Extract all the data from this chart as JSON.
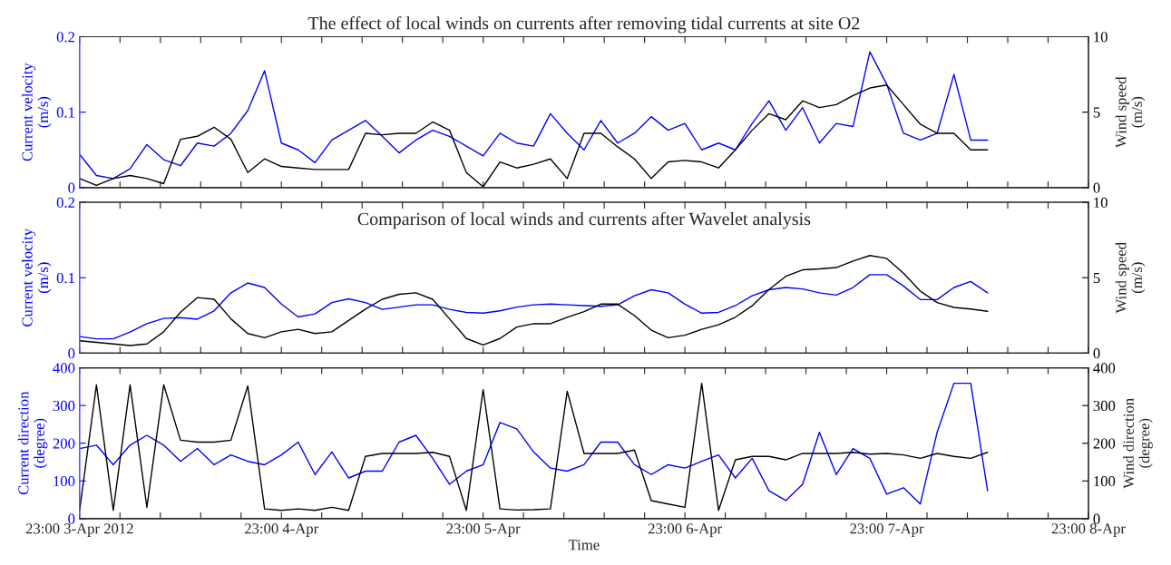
{
  "chart_data": [
    {
      "type": "line",
      "title": "The effect of local winds on currents after removing tidal currents at site O2",
      "ylabel": "Current velocity\n(m/s)",
      "y2label": "Wind speed\n(m/s)",
      "x": [
        "2012-04-03T23:00",
        "2012-04-04T01:00",
        "2012-04-04T03:00",
        "2012-04-04T05:00",
        "2012-04-04T07:00",
        "2012-04-04T09:00",
        "2012-04-04T11:00",
        "2012-04-04T13:00",
        "2012-04-04T15:00",
        "2012-04-04T17:00",
        "2012-04-04T19:00",
        "2012-04-04T21:00",
        "2012-04-04T23:00",
        "2012-04-05T01:00",
        "2012-04-05T03:00",
        "2012-04-05T05:00",
        "2012-04-05T07:00",
        "2012-04-05T09:00",
        "2012-04-05T11:00",
        "2012-04-05T13:00",
        "2012-04-05T15:00",
        "2012-04-05T17:00",
        "2012-04-05T19:00",
        "2012-04-05T21:00",
        "2012-04-05T23:00",
        "2012-04-06T01:00",
        "2012-04-06T03:00",
        "2012-04-06T05:00",
        "2012-04-06T07:00",
        "2012-04-06T09:00",
        "2012-04-06T11:00",
        "2012-04-06T13:00",
        "2012-04-06T15:00",
        "2012-04-06T17:00",
        "2012-04-06T19:00",
        "2012-04-06T21:00",
        "2012-04-06T23:00",
        "2012-04-07T01:00",
        "2012-04-07T03:00",
        "2012-04-07T05:00",
        "2012-04-07T07:00",
        "2012-04-07T09:00",
        "2012-04-07T11:00",
        "2012-04-07T13:00",
        "2012-04-07T15:00",
        "2012-04-07T17:00",
        "2012-04-07T19:00",
        "2012-04-07T21:00",
        "2012-04-07T23:00",
        "2012-04-08T01:00",
        "2012-04-08T03:00",
        "2012-04-08T05:00",
        "2012-04-08T07:00",
        "2012-04-08T09:00",
        "2012-04-08T11:00"
      ],
      "series": [
        {
          "color": "#0000ff",
          "values": [
            0.044,
            0.016,
            0.012,
            0.025,
            0.057,
            0.037,
            0.029,
            0.059,
            0.055,
            0.072,
            0.102,
            0.155,
            0.059,
            0.05,
            0.033,
            0.063,
            0.076,
            0.089,
            0.068,
            0.046,
            0.063,
            0.076,
            0.068,
            0.055,
            0.042,
            0.072,
            0.059,
            0.055,
            0.098,
            0.072,
            0.05,
            0.089,
            0.059,
            0.072,
            0.094,
            0.076,
            0.085,
            0.05,
            0.059,
            0.05,
            0.085,
            0.115,
            0.076,
            0.106,
            0.059,
            0.085,
            0.081,
            0.18,
            0.137,
            0.072,
            0.063,
            0.072,
            0.15,
            0.063,
            0.063
          ]
        },
        {
          "color": "#000000",
          "axis": "y2",
          "values": [
            0.6,
            0.15,
            0.6,
            0.8,
            0.6,
            0.26,
            3.2,
            3.4,
            4.0,
            3.2,
            1.0,
            1.9,
            1.4,
            1.3,
            1.2,
            1.2,
            1.2,
            3.6,
            3.5,
            3.6,
            3.6,
            4.35,
            3.8,
            1.0,
            0.05,
            1.7,
            1.3,
            1.55,
            1.9,
            0.6,
            3.6,
            3.6,
            2.7,
            1.9,
            0.6,
            1.7,
            1.8,
            1.7,
            1.3,
            2.5,
            3.8,
            4.9,
            4.5,
            5.75,
            5.3,
            5.5,
            6.1,
            6.6,
            6.8,
            5.5,
            4.2,
            3.6,
            3.6,
            2.5,
            2.5
          ]
        }
      ],
      "xlim": [
        "2012-04-03T23:00",
        "2012-04-08T23:00"
      ],
      "xticks": [
        {
          "value": "2012-04-03T23:00",
          "label": null
        },
        {
          "value": "2012-04-04T03:48",
          "label": null
        },
        {
          "value": "2012-04-04T08:36",
          "label": null
        },
        {
          "value": "2012-04-04T13:24",
          "label": null
        },
        {
          "value": "2012-04-04T18:12",
          "label": null
        },
        {
          "value": "2012-04-04T23:00",
          "label": null
        },
        {
          "value": "2012-04-05T03:48",
          "label": null
        },
        {
          "value": "2012-04-05T08:36",
          "label": null
        },
        {
          "value": "2012-04-05T13:24",
          "label": null
        },
        {
          "value": "2012-04-05T18:12",
          "label": null
        },
        {
          "value": "2012-04-05T23:00",
          "label": null
        },
        {
          "value": "2012-04-06T03:48",
          "label": null
        },
        {
          "value": "2012-04-06T08:36",
          "label": null
        },
        {
          "value": "2012-04-06T13:24",
          "label": null
        },
        {
          "value": "2012-04-06T18:12",
          "label": null
        },
        {
          "value": "2012-04-06T23:00",
          "label": null
        },
        {
          "value": "2012-04-07T03:48",
          "label": null
        },
        {
          "value": "2012-04-07T08:36",
          "label": null
        },
        {
          "value": "2012-04-07T13:24",
          "label": null
        },
        {
          "value": "2012-04-07T18:12",
          "label": null
        },
        {
          "value": "2012-04-07T23:00",
          "label": null
        },
        {
          "value": "2012-04-08T03:48",
          "label": null
        },
        {
          "value": "2012-04-08T08:36",
          "label": null
        },
        {
          "value": "2012-04-08T13:24",
          "label": null
        },
        {
          "value": "2012-04-08T18:12",
          "label": null
        },
        {
          "value": "2012-04-08T23:00",
          "label": null
        }
      ],
      "ylim": [
        0,
        0.2
      ],
      "yticks": [
        0,
        0.1,
        0.2
      ],
      "y2lim": [
        0,
        10
      ],
      "y2ticks": [
        0,
        5,
        10
      ],
      "tick_labels": "y"
    },
    {
      "type": "line",
      "title": "Comparison of local winds and currents after Wavelet analysis",
      "ylabel": "Current velocity\n(m/s)",
      "y2label": "Wind speed\n(m/s)",
      "x": [
        "2012-04-03T23:00",
        "2012-04-04T01:00",
        "2012-04-04T03:00",
        "2012-04-04T05:00",
        "2012-04-04T07:00",
        "2012-04-04T09:00",
        "2012-04-04T11:00",
        "2012-04-04T13:00",
        "2012-04-04T15:00",
        "2012-04-04T17:00",
        "2012-04-04T19:00",
        "2012-04-04T21:00",
        "2012-04-04T23:00",
        "2012-04-05T01:00",
        "2012-04-05T03:00",
        "2012-04-05T05:00",
        "2012-04-05T07:00",
        "2012-04-05T09:00",
        "2012-04-05T11:00",
        "2012-04-05T13:00",
        "2012-04-05T15:00",
        "2012-04-05T17:00",
        "2012-04-05T19:00",
        "2012-04-05T21:00",
        "2012-04-05T23:00",
        "2012-04-06T01:00",
        "2012-04-06T03:00",
        "2012-04-06T05:00",
        "2012-04-06T07:00",
        "2012-04-06T09:00",
        "2012-04-06T11:00",
        "2012-04-06T13:00",
        "2012-04-06T15:00",
        "2012-04-06T17:00",
        "2012-04-06T19:00",
        "2012-04-06T21:00",
        "2012-04-06T23:00",
        "2012-04-07T01:00",
        "2012-04-07T03:00",
        "2012-04-07T05:00",
        "2012-04-07T07:00",
        "2012-04-07T09:00",
        "2012-04-07T11:00",
        "2012-04-07T13:00",
        "2012-04-07T15:00",
        "2012-04-07T17:00",
        "2012-04-07T19:00",
        "2012-04-07T21:00",
        "2012-04-07T23:00",
        "2012-04-08T01:00",
        "2012-04-08T03:00",
        "2012-04-08T05:00",
        "2012-04-08T07:00",
        "2012-04-08T09:00",
        "2012-04-08T11:00"
      ],
      "series": [
        {
          "color": "#0000ff",
          "values": [
            0.022,
            0.019,
            0.019,
            0.028,
            0.039,
            0.046,
            0.047,
            0.045,
            0.056,
            0.08,
            0.093,
            0.087,
            0.065,
            0.048,
            0.052,
            0.067,
            0.072,
            0.067,
            0.058,
            0.061,
            0.064,
            0.064,
            0.058,
            0.054,
            0.053,
            0.056,
            0.061,
            0.064,
            0.065,
            0.064,
            0.063,
            0.062,
            0.064,
            0.076,
            0.084,
            0.08,
            0.065,
            0.053,
            0.054,
            0.063,
            0.076,
            0.084,
            0.087,
            0.085,
            0.08,
            0.077,
            0.087,
            0.104,
            0.104,
            0.089,
            0.071,
            0.071,
            0.087,
            0.095,
            0.08
          ]
        },
        {
          "color": "#000000",
          "axis": "y2",
          "values": [
            0.82,
            0.71,
            0.61,
            0.5,
            0.61,
            1.41,
            2.71,
            3.68,
            3.57,
            2.27,
            1.3,
            1.02,
            1.41,
            1.58,
            1.3,
            1.41,
            2.16,
            2.92,
            3.57,
            3.9,
            4.0,
            3.57,
            2.27,
            0.97,
            0.54,
            0.97,
            1.73,
            1.95,
            1.95,
            2.38,
            2.75,
            3.25,
            3.25,
            2.49,
            1.52,
            1.02,
            1.19,
            1.58,
            1.88,
            2.38,
            3.14,
            4.22,
            5.09,
            5.52,
            5.58,
            5.67,
            6.1,
            6.47,
            6.28,
            5.3,
            4.11,
            3.35,
            3.03,
            2.92,
            2.77
          ]
        }
      ],
      "xlim": [
        "2012-04-03T23:00",
        "2012-04-08T23:00"
      ],
      "xticks": [
        {
          "value": "2012-04-03T23:00",
          "label": null
        },
        {
          "value": "2012-04-04T03:48",
          "label": null
        },
        {
          "value": "2012-04-04T08:36",
          "label": null
        },
        {
          "value": "2012-04-04T13:24",
          "label": null
        },
        {
          "value": "2012-04-04T18:12",
          "label": null
        },
        {
          "value": "2012-04-04T23:00",
          "label": null
        },
        {
          "value": "2012-04-05T03:48",
          "label": null
        },
        {
          "value": "2012-04-05T08:36",
          "label": null
        },
        {
          "value": "2012-04-05T13:24",
          "label": null
        },
        {
          "value": "2012-04-05T18:12",
          "label": null
        },
        {
          "value": "2012-04-05T23:00",
          "label": null
        },
        {
          "value": "2012-04-06T03:48",
          "label": null
        },
        {
          "value": "2012-04-06T08:36",
          "label": null
        },
        {
          "value": "2012-04-06T13:24",
          "label": null
        },
        {
          "value": "2012-04-06T18:12",
          "label": null
        },
        {
          "value": "2012-04-06T23:00",
          "label": null
        },
        {
          "value": "2012-04-07T03:48",
          "label": null
        },
        {
          "value": "2012-04-07T08:36",
          "label": null
        },
        {
          "value": "2012-04-07T13:24",
          "label": null
        },
        {
          "value": "2012-04-07T18:12",
          "label": null
        },
        {
          "value": "2012-04-07T23:00",
          "label": null
        },
        {
          "value": "2012-04-08T03:48",
          "label": null
        },
        {
          "value": "2012-04-08T08:36",
          "label": null
        },
        {
          "value": "2012-04-08T13:24",
          "label": null
        },
        {
          "value": "2012-04-08T18:12",
          "label": null
        },
        {
          "value": "2012-04-08T23:00",
          "label": null
        }
      ],
      "ylim": [
        0,
        0.2
      ],
      "yticks": [
        0,
        0.1,
        0.2
      ],
      "y2lim": [
        0,
        10
      ],
      "y2ticks": [
        0,
        5,
        10
      ],
      "tick_labels": "y"
    },
    {
      "type": "line",
      "xlabel": "Time",
      "ylabel": "Current direction\n(degree)",
      "y2label": "Wind direction\n(degree)",
      "x": [
        "2012-04-03T23:00",
        "2012-04-04T01:00",
        "2012-04-04T03:00",
        "2012-04-04T05:00",
        "2012-04-04T07:00",
        "2012-04-04T09:00",
        "2012-04-04T11:00",
        "2012-04-04T13:00",
        "2012-04-04T15:00",
        "2012-04-04T17:00",
        "2012-04-04T19:00",
        "2012-04-04T21:00",
        "2012-04-04T23:00",
        "2012-04-05T01:00",
        "2012-04-05T03:00",
        "2012-04-05T05:00",
        "2012-04-05T07:00",
        "2012-04-05T09:00",
        "2012-04-05T11:00",
        "2012-04-05T13:00",
        "2012-04-05T15:00",
        "2012-04-05T17:00",
        "2012-04-05T19:00",
        "2012-04-05T21:00",
        "2012-04-05T23:00",
        "2012-04-06T01:00",
        "2012-04-06T03:00",
        "2012-04-06T05:00",
        "2012-04-06T07:00",
        "2012-04-06T09:00",
        "2012-04-06T11:00",
        "2012-04-06T13:00",
        "2012-04-06T15:00",
        "2012-04-06T17:00",
        "2012-04-06T19:00",
        "2012-04-06T21:00",
        "2012-04-06T23:00",
        "2012-04-07T01:00",
        "2012-04-07T03:00",
        "2012-04-07T05:00",
        "2012-04-07T07:00",
        "2012-04-07T09:00",
        "2012-04-07T11:00",
        "2012-04-07T13:00",
        "2012-04-07T15:00",
        "2012-04-07T17:00",
        "2012-04-07T19:00",
        "2012-04-07T21:00",
        "2012-04-07T23:00",
        "2012-04-08T01:00",
        "2012-04-08T03:00",
        "2012-04-08T05:00",
        "2012-04-08T07:00",
        "2012-04-08T09:00",
        "2012-04-08T11:00"
      ],
      "series": [
        {
          "color": "#0000ff",
          "values": [
            186,
            195,
            143,
            195,
            221,
            195,
            152,
            186,
            143,
            169,
            152,
            143,
            169,
            203,
            117,
            177,
            108,
            126,
            126,
            203,
            221,
            160,
            91,
            126,
            143,
            255,
            238,
            177,
            134,
            126,
            143,
            203,
            203,
            143,
            117,
            143,
            134,
            152,
            169,
            108,
            160,
            74,
            48,
            91,
            229,
            117,
            186,
            160,
            65,
            82,
            39,
            229,
            359,
            359,
            74
          ]
        },
        {
          "color": "#000000",
          "axis": "y2",
          "values": [
            22,
            355,
            22,
            355,
            30,
            355,
            208,
            203,
            203,
            208,
            352,
            26,
            22,
            26,
            22,
            30,
            22,
            165,
            173,
            173,
            173,
            176,
            165,
            22,
            342,
            26,
            23,
            24,
            26,
            338,
            173,
            173,
            173,
            182,
            48,
            39,
            30,
            359,
            22,
            156,
            165,
            165,
            156,
            173,
            173,
            173,
            176,
            171,
            173,
            169,
            160,
            173,
            165,
            160,
            176
          ]
        }
      ],
      "xlim": [
        "2012-04-03T23:00",
        "2012-04-08T23:00"
      ],
      "xticks": [
        {
          "value": "2012-04-03T23:00",
          "label": "23:00 3-Apr 2012"
        },
        {
          "value": "2012-04-04T03:48",
          "label": null
        },
        {
          "value": "2012-04-04T08:36",
          "label": null
        },
        {
          "value": "2012-04-04T13:24",
          "label": null
        },
        {
          "value": "2012-04-04T18:12",
          "label": null
        },
        {
          "value": "2012-04-04T23:00",
          "label": "23:00 4-Apr"
        },
        {
          "value": "2012-04-05T03:48",
          "label": null
        },
        {
          "value": "2012-04-05T08:36",
          "label": null
        },
        {
          "value": "2012-04-05T13:24",
          "label": null
        },
        {
          "value": "2012-04-05T18:12",
          "label": null
        },
        {
          "value": "2012-04-05T23:00",
          "label": "23:00 5-Apr"
        },
        {
          "value": "2012-04-06T03:48",
          "label": null
        },
        {
          "value": "2012-04-06T08:36",
          "label": null
        },
        {
          "value": "2012-04-06T13:24",
          "label": null
        },
        {
          "value": "2012-04-06T18:12",
          "label": null
        },
        {
          "value": "2012-04-06T23:00",
          "label": "23:00 6-Apr"
        },
        {
          "value": "2012-04-07T03:48",
          "label": null
        },
        {
          "value": "2012-04-07T08:36",
          "label": null
        },
        {
          "value": "2012-04-07T13:24",
          "label": null
        },
        {
          "value": "2012-04-07T18:12",
          "label": null
        },
        {
          "value": "2012-04-07T23:00",
          "label": "23:00 7-Apr"
        },
        {
          "value": "2012-04-08T03:48",
          "label": null
        },
        {
          "value": "2012-04-08T08:36",
          "label": null
        },
        {
          "value": "2012-04-08T13:24",
          "label": null
        },
        {
          "value": "2012-04-08T18:12",
          "label": null
        },
        {
          "value": "2012-04-08T23:00",
          "label": "23:00 8-Apr"
        }
      ],
      "ylim": [
        0,
        400
      ],
      "yticks": [
        0,
        100,
        200,
        300,
        400
      ],
      "y2lim": [
        0,
        400
      ],
      "y2ticks": [
        0,
        100,
        200,
        300,
        400
      ]
    }
  ]
}
